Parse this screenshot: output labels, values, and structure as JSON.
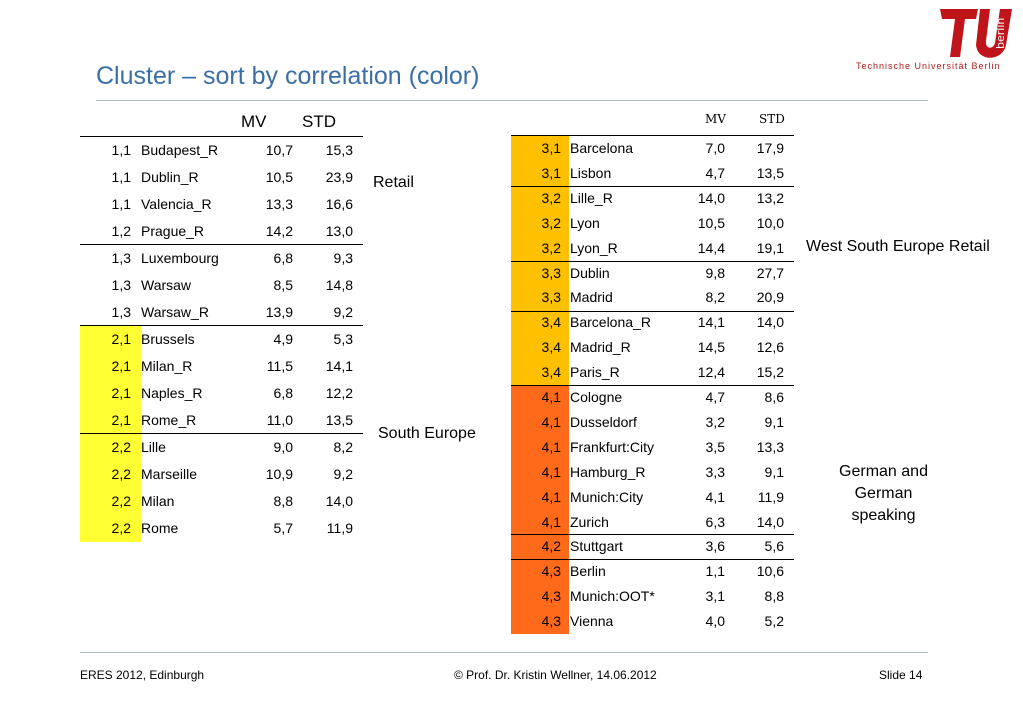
{
  "slide": {
    "title": "Cluster – sort by correlation (color)",
    "logo_text": "Technische Universität Berlin",
    "logo_letters": "TU berlin"
  },
  "left_table": {
    "headers": [
      "MV",
      "STD"
    ],
    "rows": [
      {
        "c": "1,1",
        "name": "Budapest_R",
        "mv": "10,7",
        "std": "15,3",
        "color": "#ffffff"
      },
      {
        "c": "1,1",
        "name": "Dublin_R",
        "mv": "10,5",
        "std": "23,9",
        "color": "#ffffff"
      },
      {
        "c": "1,1",
        "name": "Valencia_R",
        "mv": "13,3",
        "std": "16,6",
        "color": "#ffffff"
      },
      {
        "c": "1,2",
        "name": "Prague_R",
        "mv": "14,2",
        "std": "13,0",
        "color": "#ffffff"
      },
      {
        "c": "1,3",
        "name": "Luxembourg",
        "mv": "6,8",
        "std": "9,3",
        "color": "#ffffff"
      },
      {
        "c": "1,3",
        "name": "Warsaw",
        "mv": "8,5",
        "std": "14,8",
        "color": "#ffffff"
      },
      {
        "c": "1,3",
        "name": "Warsaw_R",
        "mv": "13,9",
        "std": "9,2",
        "color": "#ffffff"
      },
      {
        "c": "2,1",
        "name": "Brussels",
        "mv": "4,9",
        "std": "5,3",
        "color": "#ffff33"
      },
      {
        "c": "2,1",
        "name": "Milan_R",
        "mv": "11,5",
        "std": "14,1",
        "color": "#ffff33"
      },
      {
        "c": "2,1",
        "name": "Naples_R",
        "mv": "6,8",
        "std": "12,2",
        "color": "#ffff33"
      },
      {
        "c": "2,1",
        "name": "Rome_R",
        "mv": "11,0",
        "std": "13,5",
        "color": "#ffff33"
      },
      {
        "c": "2,2",
        "name": "Lille",
        "mv": "9,0",
        "std": "8,2",
        "color": "#ffff33"
      },
      {
        "c": "2,2",
        "name": "Marseille",
        "mv": "10,9",
        "std": "9,2",
        "color": "#ffff33"
      },
      {
        "c": "2,2",
        "name": "Milan",
        "mv": "8,8",
        "std": "14,0",
        "color": "#ffff33"
      },
      {
        "c": "2,2",
        "name": "Rome",
        "mv": "5,7",
        "std": "11,9",
        "color": "#ffff33"
      }
    ],
    "group_labels": [
      "Retail",
      "South Europe"
    ]
  },
  "right_table": {
    "headers": [
      "MV",
      "STD"
    ],
    "rows": [
      {
        "c": "3,1",
        "name": "Barcelona",
        "mv": "7,0",
        "std": "17,9",
        "color": "#ffc000"
      },
      {
        "c": "3,1",
        "name": "Lisbon",
        "mv": "4,7",
        "std": "13,5",
        "color": "#ffc000"
      },
      {
        "c": "3,2",
        "name": "Lille_R",
        "mv": "14,0",
        "std": "13,2",
        "color": "#ffc000"
      },
      {
        "c": "3,2",
        "name": "Lyon",
        "mv": "10,5",
        "std": "10,0",
        "color": "#ffc000"
      },
      {
        "c": "3,2",
        "name": "Lyon_R",
        "mv": "14,4",
        "std": "19,1",
        "color": "#ffc000"
      },
      {
        "c": "3,3",
        "name": "Dublin",
        "mv": "9,8",
        "std": "27,7",
        "color": "#ffc000"
      },
      {
        "c": "3,3",
        "name": "Madrid",
        "mv": "8,2",
        "std": "20,9",
        "color": "#ffc000"
      },
      {
        "c": "3,4",
        "name": "Barcelona_R",
        "mv": "14,1",
        "std": "14,0",
        "color": "#ffc000"
      },
      {
        "c": "3,4",
        "name": "Madrid_R",
        "mv": "14,5",
        "std": "12,6",
        "color": "#ffc000"
      },
      {
        "c": "3,4",
        "name": "Paris_R",
        "mv": "12,4",
        "std": "15,2",
        "color": "#ffc000"
      },
      {
        "c": "4,1",
        "name": "Cologne",
        "mv": "4,7",
        "std": "8,6",
        "color": "#ff6a1a"
      },
      {
        "c": "4,1",
        "name": "Dusseldorf",
        "mv": "3,2",
        "std": "9,1",
        "color": "#ff6a1a"
      },
      {
        "c": "4,1",
        "name": "Frankfurt:City",
        "mv": "3,5",
        "std": "13,3",
        "color": "#ff6a1a"
      },
      {
        "c": "4,1",
        "name": "Hamburg_R",
        "mv": "3,3",
        "std": "9,1",
        "color": "#ff6a1a"
      },
      {
        "c": "4,1",
        "name": "Munich:City",
        "mv": "4,1",
        "std": "11,9",
        "color": "#ff6a1a"
      },
      {
        "c": "4,1",
        "name": "Zurich",
        "mv": "6,3",
        "std": "14,0",
        "color": "#ff6a1a"
      },
      {
        "c": "4,2",
        "name": "Stuttgart",
        "mv": "3,6",
        "std": "5,6",
        "color": "#ff6a1a"
      },
      {
        "c": "4,3",
        "name": "Berlin",
        "mv": "1,1",
        "std": "10,6",
        "color": "#ff6a1a"
      },
      {
        "c": "4,3",
        "name": "Munich:OOT*",
        "mv": "3,1",
        "std": "8,8",
        "color": "#ff6a1a"
      },
      {
        "c": "4,3",
        "name": "Vienna",
        "mv": "4,0",
        "std": "5,2",
        "color": "#ff6a1a"
      }
    ],
    "group_labels": [
      "West South Europe Retail",
      "German and German speaking"
    ]
  },
  "footer": {
    "left": "ERES 2012, Edinburgh",
    "center": "© Prof. Dr. Kristin Wellner, 14.06.2012",
    "right": "Slide  14"
  }
}
